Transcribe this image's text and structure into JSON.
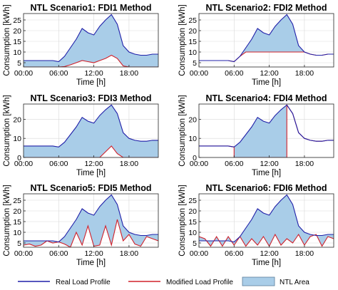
{
  "colors": {
    "real": "#1f1fa8",
    "modified": "#d0202a",
    "area_fill": "#a9cde8",
    "area_edge": "#5a7d9a",
    "grid": "#d9d9d9"
  },
  "legend": {
    "real": "Real Load Profile",
    "modified": "Modified Load Profile",
    "area": "NTL Area"
  },
  "chart_data": [
    {
      "type": "area",
      "title": "NTL Scenario1: FDI1 Method",
      "xlabel": "Time [h]",
      "ylabel": "Consumption [kWh]",
      "x_ticklabels": [
        "00:00",
        "06:00",
        "12:00",
        "18:00"
      ],
      "x_tickvalues": [
        0,
        6,
        12,
        18
      ],
      "xlim": [
        0,
        23
      ],
      "y_ticks": [
        5,
        10,
        15,
        20,
        25
      ],
      "ylim": [
        3,
        28
      ],
      "grid": true,
      "x": [
        0,
        1,
        2,
        3,
        4,
        5,
        6,
        7,
        8,
        9,
        10,
        11,
        12,
        13,
        14,
        15,
        16,
        17,
        18,
        19,
        20,
        21,
        22,
        23
      ],
      "series": [
        {
          "name": "Real Load Profile",
          "values": [
            6,
            6,
            6,
            6,
            6,
            6,
            5.5,
            8,
            12,
            16,
            21,
            19,
            18,
            22,
            25,
            27.5,
            23,
            13,
            10,
            9,
            8.5,
            8.5,
            9,
            9
          ]
        },
        {
          "name": "Modified Load Profile",
          "values": [
            2.5,
            2.5,
            2.5,
            2.5,
            2.5,
            2.5,
            2.5,
            3.2,
            4,
            5,
            6,
            5.5,
            5,
            6,
            7,
            8.5,
            7,
            3.5,
            2.5,
            2.5,
            2.5,
            2.5,
            2.5,
            2.5
          ]
        }
      ]
    },
    {
      "type": "area",
      "title": "NTL Scenario2: FDI2 Method",
      "xlabel": "Time [h]",
      "ylabel": "Consumption [kWh]",
      "x_ticklabels": [
        "00:00",
        "06:00",
        "12:00",
        "18:00"
      ],
      "x_tickvalues": [
        0,
        6,
        12,
        18
      ],
      "xlim": [
        0,
        23
      ],
      "y_ticks": [
        5,
        10,
        15,
        20,
        25
      ],
      "ylim": [
        3,
        28
      ],
      "grid": true,
      "x": [
        0,
        1,
        2,
        3,
        4,
        5,
        6,
        7,
        8,
        9,
        10,
        11,
        12,
        13,
        14,
        15,
        16,
        17,
        18,
        19,
        20,
        21,
        22,
        23
      ],
      "series": [
        {
          "name": "Real Load Profile",
          "values": [
            6,
            6,
            6,
            6,
            6,
            6,
            5.5,
            8,
            12,
            16,
            21,
            19,
            18,
            22,
            25,
            27.5,
            23,
            13,
            10,
            9,
            8.5,
            8.5,
            9,
            9
          ]
        },
        {
          "name": "Modified Load Profile",
          "values": [
            6,
            6,
            6,
            6,
            6,
            6,
            5.5,
            8,
            10,
            10,
            10,
            10,
            10,
            10,
            10,
            10,
            10,
            10,
            10,
            9,
            8.5,
            8.5,
            9,
            9
          ]
        }
      ]
    },
    {
      "type": "area",
      "title": "NTL Scenario3: FDI3 Method",
      "xlabel": "Time [h]",
      "ylabel": "Consumption [kWh]",
      "x_ticklabels": [
        "00:00",
        "06:00",
        "12:00",
        "18:00"
      ],
      "x_tickvalues": [
        0,
        6,
        12,
        18
      ],
      "xlim": [
        0,
        23
      ],
      "y_ticks": [
        0,
        10,
        20
      ],
      "ylim": [
        0,
        28
      ],
      "grid": true,
      "x": [
        0,
        1,
        2,
        3,
        4,
        5,
        6,
        7,
        8,
        9,
        10,
        11,
        12,
        13,
        14,
        15,
        16,
        17,
        18,
        19,
        20,
        21,
        22,
        23
      ],
      "series": [
        {
          "name": "Real Load Profile",
          "values": [
            6,
            6,
            6,
            6,
            6,
            6,
            5.5,
            8,
            12,
            16,
            21,
            19,
            18,
            22,
            25,
            27.5,
            23,
            13,
            10,
            9,
            8.5,
            8.5,
            9,
            9
          ]
        },
        {
          "name": "Modified Load Profile",
          "values": [
            0,
            0,
            0,
            0,
            0,
            0,
            0,
            0,
            0,
            0,
            0,
            0,
            0,
            0,
            3,
            6,
            2,
            0,
            0,
            0,
            0,
            0,
            0,
            0
          ]
        }
      ]
    },
    {
      "type": "area",
      "title": "NTL Scenario4: FDI4 Method",
      "xlabel": "Time [h]",
      "ylabel": "Consumption [kWh]",
      "x_ticklabels": [
        "00:00",
        "06:00",
        "12:00",
        "18:00"
      ],
      "x_tickvalues": [
        0,
        6,
        12,
        18
      ],
      "xlim": [
        0,
        23
      ],
      "y_ticks": [
        0,
        10,
        20
      ],
      "ylim": [
        0,
        28
      ],
      "grid": true,
      "x": [
        0,
        1,
        2,
        3,
        4,
        5,
        6,
        6,
        7,
        8,
        9,
        10,
        11,
        12,
        13,
        14,
        15,
        15,
        16,
        17,
        18,
        19,
        20,
        21,
        22,
        23
      ],
      "series": [
        {
          "name": "Real Load Profile",
          "values": [
            6,
            6,
            6,
            6,
            6,
            6,
            5.5,
            5.5,
            8,
            12,
            16,
            21,
            19,
            18,
            22,
            25,
            27.5,
            27.5,
            23,
            13,
            10,
            9,
            8.5,
            8.5,
            9,
            9
          ]
        },
        {
          "name": "Modified Load Profile",
          "values": [
            6,
            6,
            6,
            6,
            6,
            6,
            5.5,
            0,
            0,
            0,
            0,
            0,
            0,
            0,
            0,
            0,
            0,
            27.5,
            23,
            13,
            10,
            9,
            8.5,
            8.5,
            9,
            9
          ]
        }
      ]
    },
    {
      "type": "area",
      "title": "NTL Scenario5: FDI5 Method",
      "xlabel": "Time [h]",
      "ylabel": "Consumption [kWh]",
      "x_ticklabels": [
        "00:00",
        "06:00",
        "12:00",
        "18:00"
      ],
      "x_tickvalues": [
        0,
        6,
        12,
        18
      ],
      "xlim": [
        0,
        23
      ],
      "y_ticks": [
        5,
        10,
        15,
        20,
        25
      ],
      "ylim": [
        3,
        28
      ],
      "grid": true,
      "x": [
        0,
        1,
        2,
        3,
        4,
        5,
        6,
        7,
        8,
        9,
        10,
        11,
        12,
        13,
        14,
        15,
        16,
        17,
        18,
        19,
        20,
        21,
        22,
        23
      ],
      "series": [
        {
          "name": "Real Load Profile",
          "values": [
            6,
            6,
            6,
            6,
            6,
            6,
            5.5,
            8,
            12,
            16,
            21,
            19,
            18,
            22,
            25,
            27.5,
            23,
            13,
            10,
            9,
            8.5,
            8.5,
            9,
            9
          ]
        },
        {
          "name": "Modified Load Profile",
          "values": [
            4,
            4.5,
            3.5,
            4,
            6,
            5,
            5.5,
            4.5,
            3,
            10,
            4,
            13,
            3.5,
            4,
            13,
            4,
            16,
            6,
            9,
            4.5,
            3.5,
            8,
            7,
            6
          ]
        }
      ]
    },
    {
      "type": "area",
      "title": "NTL Scenario6: FDI6 Method",
      "xlabel": "Time [h]",
      "ylabel": "Consumption [kWh]",
      "x_ticklabels": [
        "00:00",
        "06:00",
        "12:00",
        "18:00"
      ],
      "x_tickvalues": [
        0,
        6,
        12,
        18
      ],
      "xlim": [
        0,
        23
      ],
      "y_ticks": [
        5,
        10,
        15,
        20,
        25
      ],
      "ylim": [
        3,
        28
      ],
      "grid": true,
      "x": [
        0,
        1,
        2,
        3,
        4,
        5,
        6,
        7,
        8,
        9,
        10,
        11,
        12,
        13,
        14,
        15,
        16,
        17,
        18,
        19,
        20,
        21,
        22,
        23
      ],
      "series": [
        {
          "name": "Real Load Profile",
          "values": [
            6,
            6,
            6,
            6,
            6,
            6,
            5.5,
            8,
            12,
            16,
            21,
            19,
            18,
            22,
            25,
            27.5,
            23,
            13,
            10,
            9,
            8.5,
            8.5,
            9,
            9
          ]
        },
        {
          "name": "Modified Load Profile",
          "values": [
            8,
            7,
            3.5,
            8,
            3.5,
            8,
            4,
            8,
            3.5,
            7,
            4,
            8,
            3.5,
            9,
            4,
            7,
            5,
            9,
            4,
            8,
            9,
            3.5,
            8,
            7
          ]
        }
      ]
    }
  ]
}
